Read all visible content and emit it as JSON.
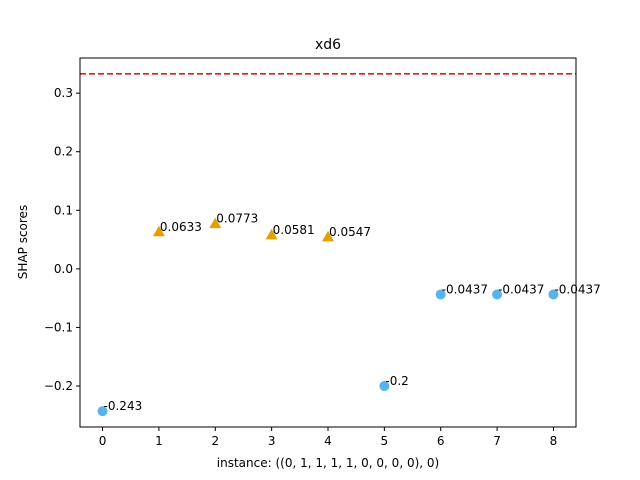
{
  "chart_data": {
    "type": "scatter",
    "title": "xd6",
    "xlabel": "instance: ((0, 1, 1, 1, 1, 0, 0, 0, 0), 0)",
    "ylabel": "SHAP scores",
    "xlim": [
      -0.4,
      8.4
    ],
    "ylim": [
      -0.27,
      0.36
    ],
    "x_ticks": [
      0,
      1,
      2,
      3,
      4,
      5,
      6,
      7,
      8
    ],
    "y_ticks": [
      -0.2,
      -0.1,
      0.0,
      0.1,
      0.2,
      0.3
    ],
    "y_tick_labels": [
      "−0.2",
      "−0.1",
      "0.0",
      "0.1",
      "0.2",
      "0.3"
    ],
    "grid": false,
    "reference_line": {
      "y": 0.333,
      "color": "#e41a1c",
      "style": "dashed"
    },
    "colors": {
      "positive": "#e69f00",
      "negative": "#56b4e9"
    },
    "points": [
      {
        "x": 0,
        "y": -0.243,
        "label": "-0.243",
        "sign": "negative"
      },
      {
        "x": 1,
        "y": 0.0633,
        "label": "0.0633",
        "sign": "positive"
      },
      {
        "x": 2,
        "y": 0.0773,
        "label": "0.0773",
        "sign": "positive"
      },
      {
        "x": 3,
        "y": 0.0581,
        "label": "0.0581",
        "sign": "positive"
      },
      {
        "x": 4,
        "y": 0.0547,
        "label": "0.0547",
        "sign": "positive"
      },
      {
        "x": 5,
        "y": -0.2,
        "label": "-0.2",
        "sign": "negative"
      },
      {
        "x": 6,
        "y": -0.0437,
        "label": "-0.0437",
        "sign": "negative"
      },
      {
        "x": 7,
        "y": -0.0437,
        "label": "-0.0437",
        "sign": "negative"
      },
      {
        "x": 8,
        "y": -0.0437,
        "label": "-0.0437",
        "sign": "negative"
      }
    ]
  }
}
